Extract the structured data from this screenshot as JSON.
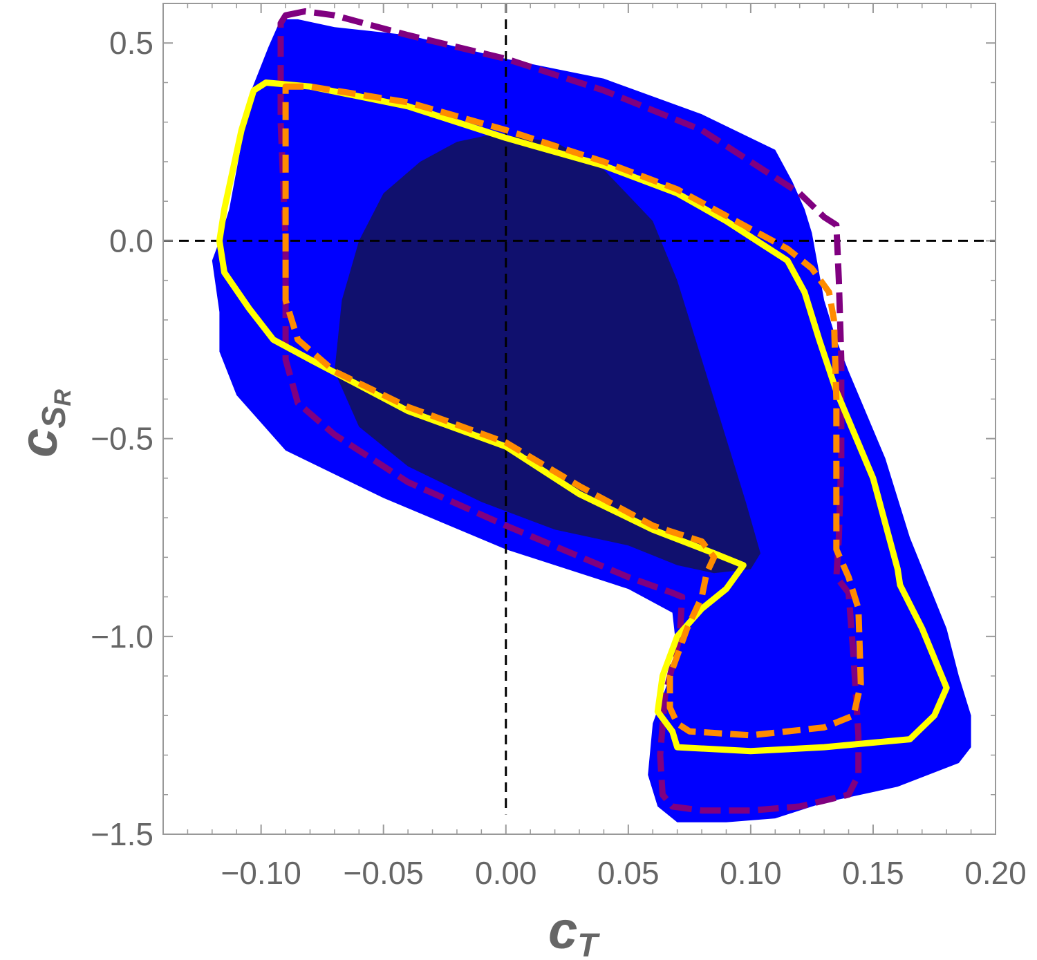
{
  "chart_data": {
    "type": "area",
    "xlabel": "c",
    "xlabel_sub": "T",
    "ylabel": "c",
    "ylabel_sub": "S",
    "ylabel_subsub": "R",
    "xlim": [
      -0.14,
      0.2
    ],
    "ylim": [
      -1.5,
      0.6
    ],
    "x_ticks": [
      -0.1,
      -0.05,
      0.0,
      0.05,
      0.1,
      0.15,
      0.2
    ],
    "x_tick_labels": [
      "−0.10",
      "−0.05",
      "0.00",
      "0.05",
      "0.10",
      "0.15",
      "0.20"
    ],
    "y_ticks": [
      0.5,
      0.0,
      -0.5,
      -1.0,
      -1.5
    ],
    "y_tick_labels": [
      "0.5",
      "0.0",
      "−0.5",
      "−1.0",
      "−1.5"
    ],
    "reference_lines": {
      "x": 0.0,
      "y": 0.0,
      "style": "dashed",
      "color": "#000000"
    },
    "grid": false,
    "colors": {
      "outer_region": "#0000ff",
      "inner_region": "#10106e",
      "yellow_contour": "#ffff00",
      "orange_contour": "#ff8c00",
      "purple_contour": "#800080",
      "tick_label": "#666666",
      "frame": "#999999"
    },
    "regions": [
      {
        "id": "outer",
        "fill": "#0000ff",
        "points": [
          [
            -0.117,
            0.0
          ],
          [
            -0.113,
            0.08
          ],
          [
            -0.104,
            0.38
          ],
          [
            -0.097,
            0.49
          ],
          [
            -0.092,
            0.56
          ],
          [
            -0.085,
            0.56
          ],
          [
            -0.07,
            0.54
          ],
          [
            -0.04,
            0.52
          ],
          [
            0.0,
            0.46
          ],
          [
            0.04,
            0.41
          ],
          [
            0.08,
            0.32
          ],
          [
            0.1,
            0.26
          ],
          [
            0.11,
            0.23
          ],
          [
            0.117,
            0.15
          ],
          [
            0.122,
            0.08
          ],
          [
            0.125,
            0.02
          ],
          [
            0.13,
            -0.15
          ],
          [
            0.135,
            -0.25
          ],
          [
            0.14,
            -0.33
          ],
          [
            0.155,
            -0.55
          ],
          [
            0.165,
            -0.75
          ],
          [
            0.18,
            -0.98
          ],
          [
            0.185,
            -1.1
          ],
          [
            0.19,
            -1.2
          ],
          [
            0.19,
            -1.28
          ],
          [
            0.185,
            -1.32
          ],
          [
            0.16,
            -1.38
          ],
          [
            0.13,
            -1.42
          ],
          [
            0.11,
            -1.46
          ],
          [
            0.09,
            -1.47
          ],
          [
            0.07,
            -1.47
          ],
          [
            0.062,
            -1.43
          ],
          [
            0.058,
            -1.35
          ],
          [
            0.06,
            -1.22
          ],
          [
            0.07,
            -1.05
          ],
          [
            0.068,
            -0.94
          ],
          [
            0.05,
            -0.88
          ],
          [
            0.0,
            -0.78
          ],
          [
            -0.05,
            -0.65
          ],
          [
            -0.09,
            -0.53
          ],
          [
            -0.11,
            -0.39
          ],
          [
            -0.117,
            -0.28
          ],
          [
            -0.117,
            -0.18
          ],
          [
            -0.12,
            -0.05
          ]
        ]
      },
      {
        "id": "inner",
        "fill": "#10106e",
        "points": [
          [
            -0.07,
            -0.33
          ],
          [
            -0.067,
            -0.15
          ],
          [
            -0.06,
            0.0
          ],
          [
            -0.05,
            0.12
          ],
          [
            -0.035,
            0.2
          ],
          [
            -0.02,
            0.25
          ],
          [
            -0.005,
            0.27
          ],
          [
            0.02,
            0.25
          ],
          [
            0.04,
            0.18
          ],
          [
            0.06,
            0.05
          ],
          [
            0.07,
            -0.1
          ],
          [
            0.08,
            -0.3
          ],
          [
            0.09,
            -0.5
          ],
          [
            0.098,
            -0.66
          ],
          [
            0.104,
            -0.79
          ],
          [
            0.1,
            -0.83
          ],
          [
            0.085,
            -0.84
          ],
          [
            0.07,
            -0.82
          ],
          [
            0.05,
            -0.77
          ],
          [
            0.02,
            -0.73
          ],
          [
            -0.01,
            -0.66
          ],
          [
            -0.04,
            -0.57
          ],
          [
            -0.06,
            -0.47
          ]
        ]
      }
    ],
    "series": [
      {
        "name": "",
        "color": "#ffff00",
        "style": "solid",
        "points": [
          [
            -0.117,
            0.0
          ],
          [
            -0.115,
            0.08
          ],
          [
            -0.108,
            0.28
          ],
          [
            -0.103,
            0.38
          ],
          [
            -0.098,
            0.4
          ],
          [
            -0.08,
            0.39
          ],
          [
            -0.04,
            0.34
          ],
          [
            0.0,
            0.26
          ],
          [
            0.04,
            0.19
          ],
          [
            0.07,
            0.12
          ],
          [
            0.09,
            0.05
          ],
          [
            0.105,
            -0.01
          ],
          [
            0.115,
            -0.05
          ],
          [
            0.122,
            -0.13
          ],
          [
            0.128,
            -0.25
          ],
          [
            0.135,
            -0.38
          ],
          [
            0.15,
            -0.6
          ],
          [
            0.16,
            -0.83
          ],
          [
            0.161,
            -0.87
          ],
          [
            0.17,
            -0.98
          ],
          [
            0.18,
            -1.13
          ],
          [
            0.175,
            -1.2
          ],
          [
            0.165,
            -1.26
          ],
          [
            0.13,
            -1.28
          ],
          [
            0.1,
            -1.29
          ],
          [
            0.07,
            -1.28
          ],
          [
            0.068,
            -1.24
          ],
          [
            0.062,
            -1.19
          ],
          [
            0.064,
            -1.1
          ],
          [
            0.07,
            -1.0
          ],
          [
            0.08,
            -0.93
          ],
          [
            0.09,
            -0.88
          ],
          [
            0.097,
            -0.82
          ],
          [
            0.085,
            -0.79
          ],
          [
            0.06,
            -0.73
          ],
          [
            0.03,
            -0.64
          ],
          [
            0.0,
            -0.52
          ],
          [
            -0.04,
            -0.43
          ],
          [
            -0.08,
            -0.3
          ],
          [
            -0.095,
            -0.25
          ],
          [
            -0.105,
            -0.17
          ],
          [
            -0.115,
            -0.08
          ]
        ]
      },
      {
        "name": "",
        "color": "#ff8c00",
        "style": "dashed",
        "points": [
          [
            -0.09,
            0.39
          ],
          [
            -0.08,
            0.39
          ],
          [
            -0.04,
            0.35
          ],
          [
            0.0,
            0.28
          ],
          [
            0.04,
            0.2
          ],
          [
            0.07,
            0.13
          ],
          [
            0.1,
            0.03
          ],
          [
            0.115,
            -0.02
          ],
          [
            0.125,
            -0.07
          ],
          [
            0.132,
            -0.13
          ],
          [
            0.134,
            -0.2
          ],
          [
            0.135,
            -0.4
          ],
          [
            0.135,
            -0.6
          ],
          [
            0.135,
            -0.78
          ],
          [
            0.14,
            -0.85
          ],
          [
            0.144,
            -0.93
          ],
          [
            0.145,
            -1.12
          ],
          [
            0.142,
            -1.2
          ],
          [
            0.13,
            -1.23
          ],
          [
            0.1,
            -1.25
          ],
          [
            0.075,
            -1.24
          ],
          [
            0.07,
            -1.22
          ],
          [
            0.067,
            -1.18
          ],
          [
            0.067,
            -1.1
          ],
          [
            0.074,
            -0.98
          ],
          [
            0.08,
            -0.9
          ],
          [
            0.082,
            -0.84
          ],
          [
            0.085,
            -0.8
          ],
          [
            0.08,
            -0.76
          ],
          [
            0.06,
            -0.72
          ],
          [
            0.03,
            -0.62
          ],
          [
            0.0,
            -0.51
          ],
          [
            -0.04,
            -0.42
          ],
          [
            -0.07,
            -0.33
          ],
          [
            -0.085,
            -0.25
          ],
          [
            -0.09,
            -0.15
          ],
          [
            -0.09,
            0.1
          ]
        ]
      },
      {
        "name": "",
        "color": "#800080",
        "style": "dashed",
        "points": [
          [
            -0.09,
            0.57
          ],
          [
            -0.082,
            0.58
          ],
          [
            -0.07,
            0.57
          ],
          [
            -0.04,
            0.52
          ],
          [
            0.0,
            0.46
          ],
          [
            0.04,
            0.38
          ],
          [
            0.08,
            0.28
          ],
          [
            0.1,
            0.2
          ],
          [
            0.12,
            0.12
          ],
          [
            0.13,
            0.06
          ],
          [
            0.135,
            0.04
          ],
          [
            0.136,
            -0.1
          ],
          [
            0.137,
            -0.3
          ],
          [
            0.137,
            -0.55
          ],
          [
            0.136,
            -0.75
          ],
          [
            0.135,
            -0.85
          ],
          [
            0.14,
            -0.89
          ],
          [
            0.142,
            -1.05
          ],
          [
            0.144,
            -1.25
          ],
          [
            0.144,
            -1.35
          ],
          [
            0.14,
            -1.4
          ],
          [
            0.12,
            -1.43
          ],
          [
            0.1,
            -1.44
          ],
          [
            0.08,
            -1.44
          ],
          [
            0.068,
            -1.43
          ],
          [
            0.064,
            -1.4
          ],
          [
            0.063,
            -1.3
          ],
          [
            0.065,
            -1.15
          ],
          [
            0.071,
            -1.0
          ],
          [
            0.072,
            -0.9
          ],
          [
            0.068,
            -0.89
          ],
          [
            0.05,
            -0.85
          ],
          [
            0.0,
            -0.72
          ],
          [
            -0.04,
            -0.61
          ],
          [
            -0.07,
            -0.49
          ],
          [
            -0.085,
            -0.41
          ],
          [
            -0.09,
            -0.3
          ],
          [
            -0.09,
            0.0
          ],
          [
            -0.092,
            0.3
          ],
          [
            -0.092,
            0.55
          ]
        ]
      }
    ]
  }
}
